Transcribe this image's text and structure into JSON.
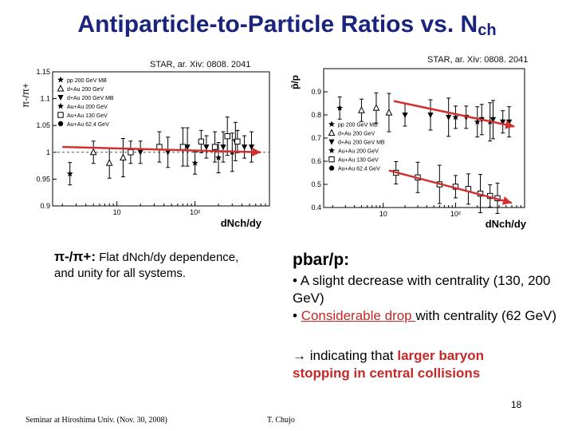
{
  "slide": {
    "title_main": "Antiparticle-to-Particle Ratios vs. N",
    "title_sub": "ch",
    "cite_left": "STAR, ar. Xiv: 0808. 2041",
    "cite_right": "STAR, ar. Xiv: 0808. 2041",
    "footer_left": "Seminar at Hiroshima Univ. (Nov. 30, 2008)",
    "footer_mid": "T. Chujo",
    "page_number": "18"
  },
  "text_left": {
    "lead": "π-/π+:",
    "line1": "Flat dNch/dy dependence,",
    "line2": "and unity for all systems."
  },
  "text_right": {
    "heading": "pbar/p:",
    "bullet1": "• A slight decrease with centrality (130, 200 GeV)",
    "bullet2_prefix": "• ",
    "bullet2_underlined": "Considerable drop ",
    "bullet2_suffix": "with centrality (62 GeV)",
    "conclusion_prefix": "→  indicating that ",
    "conclusion_red1": "larger baryon",
    "conclusion_red2": "stopping in central  collisions"
  },
  "colors": {
    "title": "#1a237e",
    "arrow": "#d32f2f",
    "emph": "#c62828"
  },
  "chart_data": [
    {
      "type": "scatter",
      "ylabel": "π-/π+",
      "xlabel": "dNch/dy",
      "xscale": "log",
      "ylim": [
        0.9,
        1.15
      ],
      "yticks": [
        0.9,
        0.95,
        1,
        1.05,
        1.1,
        1.15
      ],
      "xtick_labels": [
        "10",
        "10²"
      ],
      "legend": [
        "pp 200 GeV MB",
        "d+Au 200 GeV",
        "d+Au 200 GeV MB",
        "Au+Au 200 GeV",
        "Au+Au 130 GeV",
        "Au+Au 62.4 GeV"
      ],
      "legend_position": "top-left",
      "series": [
        {
          "name": "pp 200 GeV MB",
          "x": [
            2.5
          ],
          "y": [
            0.96
          ]
        },
        {
          "name": "d+Au 200 GeV",
          "x": [
            5,
            8,
            12
          ],
          "y": [
            1.0,
            0.98,
            0.99
          ]
        },
        {
          "name": "Au+Au 200 GeV",
          "x": [
            20,
            45,
            80,
            140,
            230,
            330,
            430,
            530
          ],
          "y": [
            1.0,
            1.0,
            1.01,
            1.01,
            1.01,
            1.02,
            1.01,
            1.01
          ]
        },
        {
          "name": "Au+Au 130 GeV",
          "x": [
            100,
            200,
            300
          ],
          "y": [
            0.98,
            0.99,
            1.0
          ]
        },
        {
          "name": "Au+Au 62.4 GeV",
          "x": [
            15,
            35,
            70,
            120,
            180,
            260,
            350
          ],
          "y": [
            1.0,
            1.01,
            1.01,
            1.02,
            1.01,
            1.03,
            1.02
          ]
        }
      ],
      "annotation_arrow": {
        "from": [
          2,
          1.01
        ],
        "to": [
          700,
          1.0
        ]
      }
    },
    {
      "type": "scatter",
      "ylabel": "p̄/p",
      "xlabel": "dNch/dy",
      "xscale": "log",
      "ylim": [
        0.4,
        1.0
      ],
      "yticks": [
        0.4,
        0.5,
        0.6,
        0.7,
        0.8,
        0.9
      ],
      "xtick_labels": [
        "10",
        "10²"
      ],
      "legend": [
        "pp 200 GeV MB",
        "d+Au 200 GeV",
        "d+Au 200 GeV MB",
        "Au+Au 200 GeV",
        "Au+Au 130 GeV",
        "Au+Au 62.4 GeV"
      ],
      "legend_position": "bottom-left",
      "series": [
        {
          "name": "pp 200 GeV MB",
          "x": [
            2.5
          ],
          "y": [
            0.83
          ]
        },
        {
          "name": "d+Au 200 GeV",
          "x": [
            5,
            8,
            12
          ],
          "y": [
            0.82,
            0.83,
            0.81
          ]
        },
        {
          "name": "Au+Au 200 GeV",
          "x": [
            20,
            45,
            80,
            140,
            230,
            330,
            450,
            550
          ],
          "y": [
            0.8,
            0.8,
            0.79,
            0.79,
            0.78,
            0.78,
            0.77,
            0.77
          ]
        },
        {
          "name": "Au+Au 130 GeV",
          "x": [
            100,
            200,
            300
          ],
          "y": [
            0.79,
            0.77,
            0.77
          ]
        },
        {
          "name": "Au+Au 62.4 GeV",
          "x": [
            15,
            30,
            60,
            100,
            150,
            220,
            300,
            380
          ],
          "y": [
            0.55,
            0.53,
            0.5,
            0.49,
            0.48,
            0.46,
            0.45,
            0.44
          ]
        }
      ],
      "annotation_arrows": [
        {
          "from": [
            14,
            0.86
          ],
          "to": [
            650,
            0.75
          ]
        },
        {
          "from": [
            12,
            0.56
          ],
          "to": [
            600,
            0.42
          ]
        }
      ]
    }
  ]
}
